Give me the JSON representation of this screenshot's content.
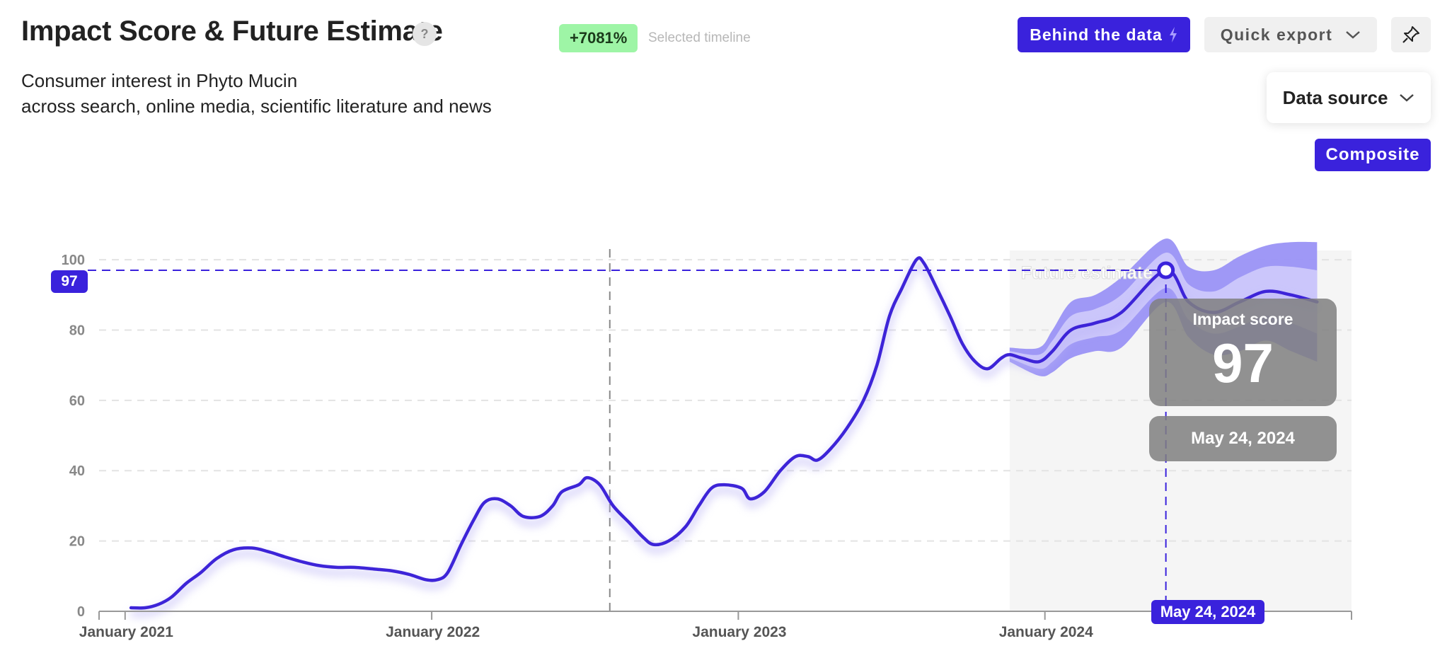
{
  "header": {
    "title": "Impact Score & Future Estimate",
    "help_glyph": "?",
    "change_badge": "+7081%",
    "change_label": "Selected timeline",
    "subtitle_line1": "Consumer interest in Phyto Mucin",
    "subtitle_line2": "across search, online media, scientific literature and news"
  },
  "toolbar": {
    "behind_label": "Behind the data",
    "behind_icon": "lightning-icon",
    "export_label": "Quick export",
    "export_icon": "chevron-down-icon",
    "pin_icon": "pin-icon",
    "data_source_label": "Data source",
    "data_source_icon": "chevron-down-icon",
    "composite_label": "Composite"
  },
  "colors": {
    "accent": "#3a22dc",
    "line": "#3d24d8",
    "band_outer": "#9a92f6",
    "band_inner": "#cdc8fb",
    "badge_green": "#9ef5a6",
    "forecast_bg": "#f5f5f5"
  },
  "tooltip": {
    "label": "Impact score",
    "value": "97",
    "date": "May 24, 2024"
  },
  "markers": {
    "y_value": "97",
    "x_date": "May 24, 2024"
  },
  "chart_data": {
    "type": "line",
    "title": "Impact Score & Future Estimate",
    "ylim": [
      0,
      100
    ],
    "y_ticks": [
      0,
      20,
      40,
      60,
      80,
      100
    ],
    "x_ticks": [
      "January 2021",
      "January 2022",
      "January 2023",
      "January 2024"
    ],
    "xlim": [
      "2020-12-01",
      "2024-12-31"
    ],
    "grid": true,
    "forecast_label": "Future estimate",
    "forecast_start": "2023-11-20",
    "selected_timeline_start": "2022-08-01",
    "series": [
      {
        "name": "Impact score",
        "points": [
          [
            "2021-01-08",
            1
          ],
          [
            "2021-01-25",
            1
          ],
          [
            "2021-02-10",
            2
          ],
          [
            "2021-02-25",
            4
          ],
          [
            "2021-03-15",
            8
          ],
          [
            "2021-04-01",
            11
          ],
          [
            "2021-04-20",
            15
          ],
          [
            "2021-05-10",
            17.5
          ],
          [
            "2021-06-01",
            18
          ],
          [
            "2021-06-20",
            17
          ],
          [
            "2021-07-10",
            15.5
          ],
          [
            "2021-08-01",
            14
          ],
          [
            "2021-08-20",
            13
          ],
          [
            "2021-09-10",
            12.5
          ],
          [
            "2021-10-01",
            12.5
          ],
          [
            "2021-10-25",
            12
          ],
          [
            "2021-11-15",
            11.5
          ],
          [
            "2021-12-05",
            10.5
          ],
          [
            "2021-12-25",
            9
          ],
          [
            "2022-01-08",
            9
          ],
          [
            "2022-01-20",
            11
          ],
          [
            "2022-02-05",
            19
          ],
          [
            "2022-02-20",
            26
          ],
          [
            "2022-03-05",
            31
          ],
          [
            "2022-03-20",
            32
          ],
          [
            "2022-04-05",
            30
          ],
          [
            "2022-04-20",
            27
          ],
          [
            "2022-05-10",
            27
          ],
          [
            "2022-05-25",
            30
          ],
          [
            "2022-06-05",
            34
          ],
          [
            "2022-06-25",
            36
          ],
          [
            "2022-07-05",
            38
          ],
          [
            "2022-07-20",
            36
          ],
          [
            "2022-08-05",
            30
          ],
          [
            "2022-08-25",
            25
          ],
          [
            "2022-09-10",
            21
          ],
          [
            "2022-09-22",
            19
          ],
          [
            "2022-10-10",
            20
          ],
          [
            "2022-10-30",
            24
          ],
          [
            "2022-11-15",
            30
          ],
          [
            "2022-11-30",
            35
          ],
          [
            "2022-12-15",
            36
          ],
          [
            "2023-01-05",
            35
          ],
          [
            "2023-01-15",
            32
          ],
          [
            "2023-02-01",
            34
          ],
          [
            "2023-02-20",
            40
          ],
          [
            "2023-03-10",
            44
          ],
          [
            "2023-03-25",
            44
          ],
          [
            "2023-04-05",
            43
          ],
          [
            "2023-04-20",
            46
          ],
          [
            "2023-05-10",
            52
          ],
          [
            "2023-05-30",
            60
          ],
          [
            "2023-06-15",
            70
          ],
          [
            "2023-06-30",
            84
          ],
          [
            "2023-07-15",
            92
          ],
          [
            "2023-08-01",
            100
          ],
          [
            "2023-08-10",
            99
          ],
          [
            "2023-08-25",
            92
          ],
          [
            "2023-09-10",
            84
          ],
          [
            "2023-09-25",
            76
          ],
          [
            "2023-10-10",
            71
          ],
          [
            "2023-10-25",
            69
          ],
          [
            "2023-11-10",
            72
          ],
          [
            "2023-11-20",
            73
          ],
          [
            "2023-12-05",
            72
          ],
          [
            "2023-12-25",
            71
          ],
          [
            "2024-01-10",
            74
          ],
          [
            "2024-02-01",
            80
          ],
          [
            "2024-03-01",
            82
          ],
          [
            "2024-04-01",
            85
          ],
          [
            "2024-05-24",
            97
          ],
          [
            "2024-06-20",
            88
          ],
          [
            "2024-07-20",
            85
          ],
          [
            "2024-08-20",
            88
          ],
          [
            "2024-09-20",
            91
          ],
          [
            "2024-10-20",
            90
          ],
          [
            "2024-11-20",
            88
          ]
        ]
      }
    ],
    "confidence_band": [
      {
        "x": "2023-11-20",
        "inner": [
          72,
          74
        ],
        "outer": [
          71,
          75
        ]
      },
      {
        "x": "2023-12-25",
        "inner": [
          69,
          73
        ],
        "outer": [
          67,
          75
        ]
      },
      {
        "x": "2024-01-10",
        "inner": [
          71,
          77
        ],
        "outer": [
          68,
          80
        ]
      },
      {
        "x": "2024-02-01",
        "inner": [
          76,
          84
        ],
        "outer": [
          72,
          88
        ]
      },
      {
        "x": "2024-03-01",
        "inner": [
          78,
          86
        ],
        "outer": [
          74,
          90
        ]
      },
      {
        "x": "2024-04-01",
        "inner": [
          80,
          90
        ],
        "outer": [
          75,
          95
        ]
      },
      {
        "x": "2024-05-24",
        "inner": [
          92,
          102
        ],
        "outer": [
          88,
          106
        ]
      },
      {
        "x": "2024-06-20",
        "inner": [
          83,
          93
        ],
        "outer": [
          78,
          98
        ]
      },
      {
        "x": "2024-07-20",
        "inner": [
          79,
          91
        ],
        "outer": [
          73,
          97
        ]
      },
      {
        "x": "2024-08-20",
        "inner": [
          81,
          95
        ],
        "outer": [
          74,
          101
        ]
      },
      {
        "x": "2024-09-20",
        "inner": [
          84,
          98
        ],
        "outer": [
          77,
          104
        ]
      },
      {
        "x": "2024-10-20",
        "inner": [
          82,
          98
        ],
        "outer": [
          74,
          105
        ]
      },
      {
        "x": "2024-11-20",
        "inner": [
          79,
          97
        ],
        "outer": [
          71,
          105
        ]
      }
    ],
    "highlight": {
      "x": "2024-05-24",
      "y": 97
    }
  }
}
